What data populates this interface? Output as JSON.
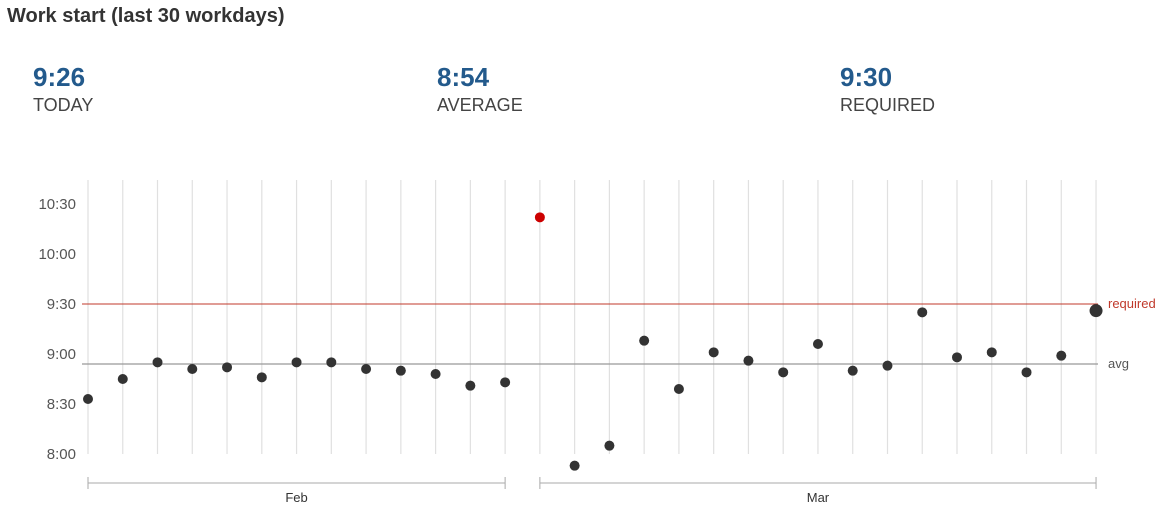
{
  "title": "Work start (last 30 workdays)",
  "stats": [
    {
      "value": "9:26",
      "label": "TODAY"
    },
    {
      "value": "8:54",
      "label": "AVERAGE"
    },
    {
      "value": "9:30",
      "label": "REQUIRED"
    }
  ],
  "colors": {
    "accent": "#235a8c",
    "point": "#333333",
    "outlier": "#cc0000",
    "required_line": "#c0392b",
    "avg_line": "#999999",
    "grid": "#e0e0e0"
  },
  "chart_data": {
    "type": "scatter",
    "y_unit": "minutes since midnight",
    "ylim": [
      480,
      630
    ],
    "yticks": [
      {
        "value": 480,
        "label": "8:00"
      },
      {
        "value": 510,
        "label": "8:30"
      },
      {
        "value": 540,
        "label": "9:00"
      },
      {
        "value": 570,
        "label": "9:30"
      },
      {
        "value": 600,
        "label": "10:00"
      },
      {
        "value": 630,
        "label": "10:30"
      }
    ],
    "groups": [
      {
        "label": "Feb",
        "start": 0,
        "end": 12
      },
      {
        "label": "Mar",
        "start": 13,
        "end": 29
      }
    ],
    "points": [
      {
        "time": "8:33",
        "y": 513
      },
      {
        "time": "8:45",
        "y": 525
      },
      {
        "time": "8:55",
        "y": 535
      },
      {
        "time": "8:51",
        "y": 531
      },
      {
        "time": "8:52",
        "y": 532
      },
      {
        "time": "8:46",
        "y": 526
      },
      {
        "time": "8:55",
        "y": 535
      },
      {
        "time": "8:55",
        "y": 535
      },
      {
        "time": "8:51",
        "y": 531
      },
      {
        "time": "8:50",
        "y": 530
      },
      {
        "time": "8:48",
        "y": 528
      },
      {
        "time": "8:41",
        "y": 521
      },
      {
        "time": "8:43",
        "y": 523
      },
      {
        "time": "10:22",
        "y": 622,
        "highlight": true
      },
      {
        "time": "7:53",
        "y": 473
      },
      {
        "time": "8:05",
        "y": 485
      },
      {
        "time": "9:08",
        "y": 548
      },
      {
        "time": "8:39",
        "y": 519
      },
      {
        "time": "9:01",
        "y": 541
      },
      {
        "time": "8:56",
        "y": 536
      },
      {
        "time": "8:49",
        "y": 529
      },
      {
        "time": "9:06",
        "y": 546
      },
      {
        "time": "8:50",
        "y": 530
      },
      {
        "time": "8:53",
        "y": 533
      },
      {
        "time": "9:25",
        "y": 565
      },
      {
        "time": "8:58",
        "y": 538
      },
      {
        "time": "9:01",
        "y": 541
      },
      {
        "time": "8:49",
        "y": 529
      },
      {
        "time": "8:59",
        "y": 539
      },
      {
        "time": "9:26",
        "y": 566,
        "today": true
      }
    ],
    "reference_lines": [
      {
        "label": "required",
        "value": 570
      },
      {
        "label": "avg",
        "value": 534
      }
    ],
    "grid": true
  }
}
